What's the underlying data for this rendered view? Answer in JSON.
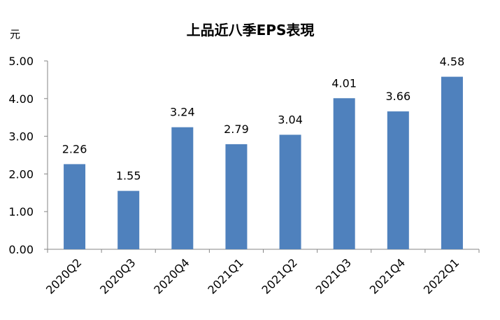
{
  "chart_data": {
    "type": "bar",
    "title": "上品近八季EPS表現",
    "unit_label": "元",
    "xlabel": "",
    "ylabel": "",
    "categories": [
      "2020Q2",
      "2020Q3",
      "2020Q4",
      "2021Q1",
      "2021Q2",
      "2021Q3",
      "2021Q4",
      "2022Q1"
    ],
    "values": [
      2.26,
      1.55,
      3.24,
      2.79,
      3.04,
      4.01,
      3.66,
      4.58
    ],
    "value_labels": [
      "2.26",
      "1.55",
      "3.24",
      "2.79",
      "3.04",
      "4.01",
      "3.66",
      "4.58"
    ],
    "yticks": [
      "0.00",
      "1.00",
      "2.00",
      "3.00",
      "4.00",
      "5.00"
    ],
    "ylim": [
      0,
      5
    ],
    "grid": false,
    "legend": "none",
    "bar_color": "#4f81bd"
  }
}
